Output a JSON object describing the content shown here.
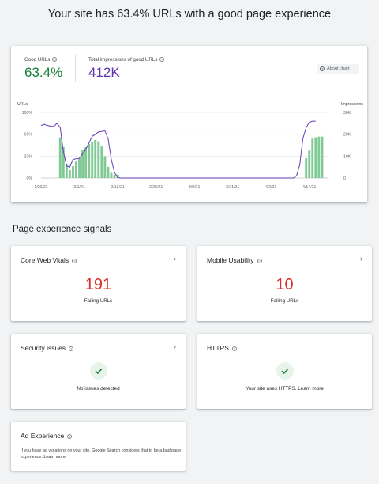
{
  "page": {
    "title": "Your site has 63.4% URLs with a good page experience"
  },
  "overview": {
    "good_urls_label": "Good URLs",
    "good_urls_value": "63.4%",
    "impressions_label": "Total impressions of good URLs",
    "impressions_value": "412K",
    "about_chart_label": "About chart",
    "colors": {
      "good_urls": "#188038",
      "impressions": "#5e35b1",
      "bars": "#81c995",
      "line": "#673ab7"
    }
  },
  "chart_data": {
    "type": "bar",
    "left_axis_label": "URLs",
    "right_axis_label": "Impressions",
    "left_ticks": [
      "100%",
      "66%",
      "33%",
      "0%"
    ],
    "right_ticks": [
      "30K",
      "20K",
      "10K",
      "0"
    ],
    "x_tick_labels": [
      "1/20/21",
      "2/1/21",
      "2/13/21",
      "2/25/21",
      "3/9/21",
      "3/21/21",
      "4/2/21",
      "4/14/21"
    ],
    "x_range": [
      "1/20/21",
      "4/20/21"
    ],
    "urls_pct": {
      "name": "Good URLs",
      "dates": [
        "1/26/21",
        "1/27/21",
        "1/28/21",
        "1/29/21",
        "1/30/21",
        "1/31/21",
        "2/1/21",
        "2/2/21",
        "2/3/21",
        "2/4/21",
        "2/5/21",
        "2/6/21",
        "2/7/21",
        "2/8/21",
        "2/9/21",
        "2/10/21",
        "2/11/21",
        "2/12/21",
        "2/13/21",
        "2/14/21",
        "4/13/21",
        "4/14/21",
        "4/15/21",
        "4/16/21",
        "4/17/21",
        "4/18/21"
      ],
      "values": [
        62,
        47,
        20,
        12,
        18,
        25,
        30,
        42,
        47,
        52,
        55,
        58,
        56,
        48,
        33,
        17,
        8,
        5,
        5,
        0,
        30,
        42,
        60,
        62,
        63,
        63
      ]
    },
    "impressions": {
      "name": "Total impressions of good URLs",
      "dates": [
        "1/20/21",
        "1/21/21",
        "1/22/21",
        "1/24/21",
        "1/25/21",
        "1/26/21",
        "1/27/21",
        "1/28/21",
        "1/29/21",
        "1/30/21",
        "2/1/21",
        "2/3/21",
        "2/5/21",
        "2/7/21",
        "2/9/21",
        "2/10/21",
        "2/11/21",
        "2/12/21",
        "2/13/21",
        "2/14/21",
        "2/15/21",
        "4/9/21",
        "4/10/21",
        "4/11/21",
        "4/12/21",
        "4/13/21",
        "4/14/21",
        "4/15/21",
        "4/16/21"
      ],
      "values": [
        24000,
        24500,
        24000,
        23500,
        25000,
        23000,
        12000,
        5500,
        5000,
        8500,
        9000,
        13000,
        19000,
        21000,
        21500,
        18000,
        8500,
        2500,
        300,
        0,
        0,
        0,
        1000,
        6000,
        18000,
        23000,
        25500,
        26000,
        26000
      ]
    },
    "left_ylim": [
      0,
      100
    ],
    "right_ylim": [
      0,
      30000
    ],
    "grid": true
  },
  "signals": {
    "section_title": "Page experience signals",
    "core_web_vitals": {
      "title": "Core Web Vitals",
      "value": "191",
      "sub": "Failing URLs"
    },
    "mobile_usability": {
      "title": "Mobile Usability",
      "value": "10",
      "sub": "Failing URLs"
    },
    "security": {
      "title": "Security issues",
      "status": "No issues detected"
    },
    "https": {
      "title": "HTTPS",
      "status": "Your site uses HTTPS.",
      "link": "Learn more"
    },
    "ad_experience": {
      "title": "Ad Experience",
      "desc": "If you have ad violations on your site, Google Search considers that to be a bad page experience.",
      "link": "Learn more"
    }
  }
}
